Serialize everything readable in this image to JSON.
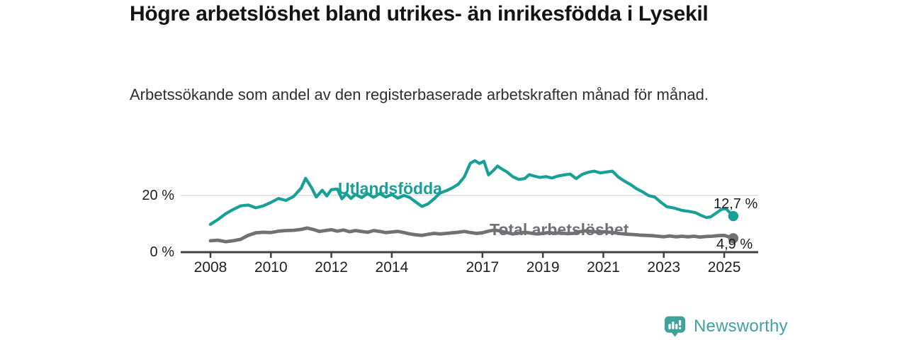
{
  "header": {
    "title": "Högre arbetslöshet bland utrikes- än inrikesfödda i Lysekil",
    "subtitle": "Arbetssökande som andel av den registerbaserade arbetskraften månad för månad."
  },
  "chart_data": {
    "type": "line",
    "title": "Högre arbetslöshet bland utrikes- än inrikesfödda i Lysekil",
    "xlabel": "",
    "ylabel": "Arbetssökande som andel av den registerbaserade arbetskraften",
    "x_axis": {
      "ticks": [
        2008,
        2010,
        2012,
        2014,
        2017,
        2019,
        2021,
        2023,
        2025
      ],
      "range": [
        2008,
        2025.5
      ]
    },
    "y_axis": {
      "unit": "%",
      "ticks": [
        {
          "value": 20,
          "label": "20 %"
        },
        {
          "value": 0,
          "label": "0 %"
        }
      ],
      "grid_values": [
        20
      ],
      "ylim": [
        0,
        34
      ]
    },
    "series": [
      {
        "name": "Utlandsfödda",
        "color": "#16a096",
        "end_label": "12,7 %",
        "end_value": 12.7,
        "points": [
          [
            2008.0,
            9.8
          ],
          [
            2008.25,
            11.5
          ],
          [
            2008.5,
            13.5
          ],
          [
            2008.75,
            15.0
          ],
          [
            2009.0,
            16.3
          ],
          [
            2009.25,
            16.6
          ],
          [
            2009.5,
            15.6
          ],
          [
            2009.75,
            16.3
          ],
          [
            2010.0,
            17.5
          ],
          [
            2010.25,
            18.9
          ],
          [
            2010.5,
            18.2
          ],
          [
            2010.75,
            19.6
          ],
          [
            2011.0,
            22.5
          ],
          [
            2011.15,
            26.0
          ],
          [
            2011.35,
            22.6
          ],
          [
            2011.5,
            19.4
          ],
          [
            2011.7,
            21.8
          ],
          [
            2011.85,
            19.8
          ],
          [
            2012.0,
            22.0
          ],
          [
            2012.2,
            22.2
          ],
          [
            2012.35,
            18.8
          ],
          [
            2012.5,
            20.5
          ],
          [
            2012.65,
            18.9
          ],
          [
            2012.8,
            20.3
          ],
          [
            2013.0,
            19.2
          ],
          [
            2013.2,
            20.6
          ],
          [
            2013.4,
            19.3
          ],
          [
            2013.6,
            20.6
          ],
          [
            2013.8,
            19.4
          ],
          [
            2014.0,
            20.3
          ],
          [
            2014.2,
            19.0
          ],
          [
            2014.4,
            20.0
          ],
          [
            2014.6,
            19.2
          ],
          [
            2014.8,
            17.6
          ],
          [
            2015.0,
            16.1
          ],
          [
            2015.2,
            17.0
          ],
          [
            2015.4,
            18.8
          ],
          [
            2015.6,
            20.8
          ],
          [
            2015.8,
            21.6
          ],
          [
            2016.0,
            22.6
          ],
          [
            2016.2,
            23.9
          ],
          [
            2016.4,
            26.5
          ],
          [
            2016.6,
            31.3
          ],
          [
            2016.75,
            32.2
          ],
          [
            2016.9,
            31.2
          ],
          [
            2017.05,
            32.0
          ],
          [
            2017.2,
            27.2
          ],
          [
            2017.35,
            28.6
          ],
          [
            2017.5,
            30.3
          ],
          [
            2017.65,
            29.2
          ],
          [
            2017.8,
            28.3
          ],
          [
            2018.0,
            26.6
          ],
          [
            2018.2,
            25.6
          ],
          [
            2018.4,
            25.9
          ],
          [
            2018.55,
            27.3
          ],
          [
            2018.7,
            26.8
          ],
          [
            2018.9,
            26.3
          ],
          [
            2019.1,
            26.6
          ],
          [
            2019.3,
            26.1
          ],
          [
            2019.5,
            26.8
          ],
          [
            2019.7,
            27.2
          ],
          [
            2019.9,
            27.5
          ],
          [
            2020.1,
            25.9
          ],
          [
            2020.3,
            27.4
          ],
          [
            2020.5,
            28.1
          ],
          [
            2020.7,
            28.5
          ],
          [
            2020.9,
            27.9
          ],
          [
            2021.1,
            28.2
          ],
          [
            2021.3,
            28.5
          ],
          [
            2021.5,
            26.4
          ],
          [
            2021.7,
            25.0
          ],
          [
            2021.9,
            23.8
          ],
          [
            2022.1,
            22.3
          ],
          [
            2022.3,
            21.2
          ],
          [
            2022.5,
            19.9
          ],
          [
            2022.7,
            19.4
          ],
          [
            2022.9,
            17.6
          ],
          [
            2023.1,
            16.0
          ],
          [
            2023.35,
            15.5
          ],
          [
            2023.6,
            14.7
          ],
          [
            2023.85,
            14.3
          ],
          [
            2024.05,
            13.9
          ],
          [
            2024.2,
            13.1
          ],
          [
            2024.4,
            12.2
          ],
          [
            2024.55,
            12.4
          ],
          [
            2024.7,
            13.5
          ],
          [
            2024.9,
            15.0
          ],
          [
            2025.05,
            15.4
          ],
          [
            2025.3,
            12.7
          ]
        ]
      },
      {
        "name": "Total arbetslöshet",
        "color": "#717074",
        "end_label": "4,9 %",
        "end_value": 4.9,
        "points": [
          [
            2008.0,
            4.0
          ],
          [
            2008.25,
            4.2
          ],
          [
            2008.5,
            3.7
          ],
          [
            2008.75,
            4.0
          ],
          [
            2009.0,
            4.5
          ],
          [
            2009.25,
            5.9
          ],
          [
            2009.5,
            6.8
          ],
          [
            2009.75,
            7.0
          ],
          [
            2010.0,
            6.9
          ],
          [
            2010.25,
            7.4
          ],
          [
            2010.5,
            7.6
          ],
          [
            2010.75,
            7.7
          ],
          [
            2011.0,
            8.0
          ],
          [
            2011.2,
            8.5
          ],
          [
            2011.4,
            8.0
          ],
          [
            2011.6,
            7.3
          ],
          [
            2011.8,
            7.6
          ],
          [
            2012.0,
            7.9
          ],
          [
            2012.2,
            7.4
          ],
          [
            2012.4,
            7.8
          ],
          [
            2012.6,
            7.2
          ],
          [
            2012.8,
            7.6
          ],
          [
            2013.0,
            7.3
          ],
          [
            2013.2,
            7.0
          ],
          [
            2013.4,
            7.6
          ],
          [
            2013.6,
            7.3
          ],
          [
            2013.8,
            6.9
          ],
          [
            2014.0,
            7.1
          ],
          [
            2014.2,
            7.3
          ],
          [
            2014.4,
            6.9
          ],
          [
            2014.6,
            6.4
          ],
          [
            2014.8,
            6.1
          ],
          [
            2015.0,
            5.9
          ],
          [
            2015.2,
            6.3
          ],
          [
            2015.4,
            6.6
          ],
          [
            2015.6,
            6.4
          ],
          [
            2015.8,
            6.6
          ],
          [
            2016.0,
            6.8
          ],
          [
            2016.2,
            7.0
          ],
          [
            2016.4,
            7.3
          ],
          [
            2016.6,
            6.9
          ],
          [
            2016.8,
            6.6
          ],
          [
            2017.0,
            6.8
          ],
          [
            2017.2,
            7.4
          ],
          [
            2017.4,
            7.8
          ],
          [
            2017.6,
            7.4
          ],
          [
            2017.8,
            6.9
          ],
          [
            2018.0,
            6.4
          ],
          [
            2018.2,
            6.7
          ],
          [
            2018.4,
            7.0
          ],
          [
            2018.6,
            6.7
          ],
          [
            2018.8,
            6.4
          ],
          [
            2019.0,
            6.6
          ],
          [
            2019.2,
            6.9
          ],
          [
            2019.4,
            6.6
          ],
          [
            2019.6,
            6.8
          ],
          [
            2019.8,
            6.5
          ],
          [
            2020.0,
            6.6
          ],
          [
            2020.2,
            7.2
          ],
          [
            2020.4,
            7.5
          ],
          [
            2020.6,
            7.3
          ],
          [
            2020.8,
            7.1
          ],
          [
            2021.0,
            7.2
          ],
          [
            2021.2,
            7.0
          ],
          [
            2021.4,
            6.8
          ],
          [
            2021.6,
            6.5
          ],
          [
            2021.8,
            6.3
          ],
          [
            2022.0,
            6.2
          ],
          [
            2022.2,
            6.0
          ],
          [
            2022.4,
            5.9
          ],
          [
            2022.6,
            5.8
          ],
          [
            2022.8,
            5.6
          ],
          [
            2023.0,
            5.4
          ],
          [
            2023.2,
            5.7
          ],
          [
            2023.4,
            5.4
          ],
          [
            2023.6,
            5.6
          ],
          [
            2023.8,
            5.4
          ],
          [
            2024.0,
            5.6
          ],
          [
            2024.2,
            5.3
          ],
          [
            2024.4,
            5.5
          ],
          [
            2024.6,
            5.6
          ],
          [
            2024.8,
            5.8
          ],
          [
            2025.0,
            5.9
          ],
          [
            2025.3,
            4.9
          ]
        ]
      }
    ],
    "legend_position": "inline-labels",
    "grid": "horizontal-only"
  },
  "colors": {
    "axis": "#404040",
    "gridline": "#dcdcdc",
    "tick_text": "#202020",
    "title_text": "#141414"
  },
  "branding": {
    "logo_text": "Newsworthy",
    "logo_color": "#3fa29d",
    "logo_icon": "bar-chart-speech-bubble-icon"
  }
}
